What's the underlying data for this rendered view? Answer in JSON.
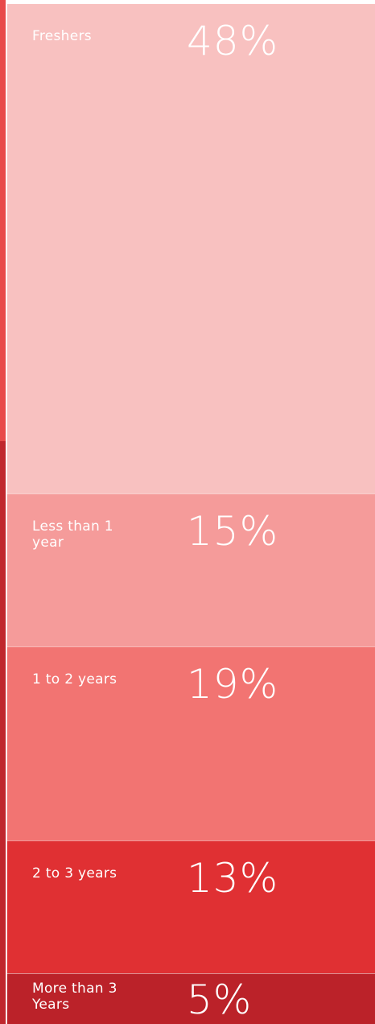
{
  "chart_data": {
    "type": "stacked-column",
    "categories": [
      "Freshers",
      "Less than 1 year",
      "1 to 2 years",
      "2 to 3 years",
      "More than 3 Years"
    ],
    "values": [
      48,
      15,
      19,
      13,
      5
    ],
    "value_labels": [
      "48%",
      "15%",
      "19%",
      "13%",
      "5%"
    ],
    "colors": [
      "#f8c1c0",
      "#f59b9a",
      "#f27472",
      "#e03033",
      "#bb2229"
    ]
  }
}
